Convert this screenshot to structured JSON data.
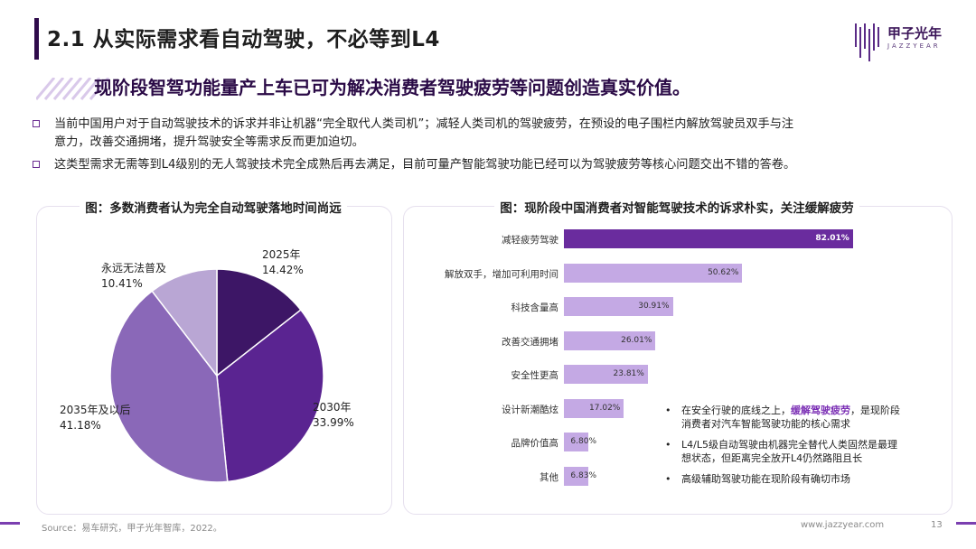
{
  "header": {
    "title": "2.1 从实际需求看自动驾驶，不必等到L4",
    "logo_text": "甲子光年",
    "logo_sub": "JAZZYEAR"
  },
  "headline": "现阶段智驾功能量产上车已可为解决消费者驾驶疲劳等问题创造真实价值。",
  "bullets": [
    {
      "line1": "当前中国用户对于自动驾驶技术的诉求并非让机器“完全取代人类司机”；减轻人类司机的驾驶疲劳，在预设的电子围栏内解放驾驶员双手与注",
      "line2": "意力，改善交通拥堵，提升驾驶安全等需求反而更加迫切。"
    },
    {
      "line1": "这类型需求无需等到L4级别的无人驾驶技术完全成熟后再去满足，目前可量产智能驾驶功能已经可以为驾驶疲劳等核心问题交出不错的答卷。"
    }
  ],
  "left_chart": {
    "title": "图：多数消费者认为完全自动驾驶落地时间尚远",
    "labels": [
      {
        "name": "2025年",
        "value": "14.42%"
      },
      {
        "name": "2030年",
        "value": "33.99%"
      },
      {
        "name": "2035年及以后",
        "value": "41.18%"
      },
      {
        "name": "永远无法普及",
        "value": "10.41%"
      }
    ]
  },
  "right_chart": {
    "title": "图：现阶段中国消费者对智能驾驶技术的诉求朴实，关注缓解疲劳",
    "notes": [
      {
        "pre": "在安全行驶的底线之上，",
        "hl": "缓解驾驶疲劳",
        "post": "，是现阶段",
        "line2": "消费者对汽车智能驾驶功能的核心需求"
      },
      {
        "line1": "L4/L5级自动驾驶由机器完全替代人类固然是最理",
        "line2": "想状态，但距离完全放开L4仍然路阻且长"
      },
      {
        "line1": "高级辅助驾驶功能在现阶段有确切市场"
      }
    ]
  },
  "chart_data": [
    {
      "type": "pie",
      "title": "图：多数消费者认为完全自动驾驶落地时间尚远",
      "categories": [
        "2025年",
        "2030年",
        "2035年及以后",
        "永远无法普及"
      ],
      "values": [
        14.42,
        33.99,
        41.18,
        10.41
      ],
      "colors": [
        "#3d1666",
        "#5a2491",
        "#8a68b8",
        "#b9a6d4"
      ]
    },
    {
      "type": "bar",
      "orientation": "horizontal",
      "title": "图：现阶段中国消费者对智能驾驶技术的诉求朴实，关注缓解疲劳",
      "categories": [
        "减轻疲劳驾驶",
        "解放双手，增加可利用时间",
        "科技含量高",
        "改善交通拥堵",
        "安全性更高",
        "设计新潮酷炫",
        "品牌价值高",
        "其他"
      ],
      "values": [
        82.01,
        50.62,
        30.91,
        26.01,
        23.81,
        17.02,
        6.8,
        6.83
      ],
      "value_labels": [
        "82.01%",
        "50.62%",
        "30.91%",
        "26.01%",
        "23.81%",
        "17.02%",
        "6.80%",
        "6.83%"
      ],
      "colors": {
        "first": "#6a2c9e",
        "rest": "#c4a9e4"
      },
      "xlim": [
        0,
        100
      ]
    }
  ],
  "footer": {
    "source": "Source：易车研究，甲子光年智库，2022。",
    "url": "www.jazzyear.com",
    "page": "13"
  }
}
